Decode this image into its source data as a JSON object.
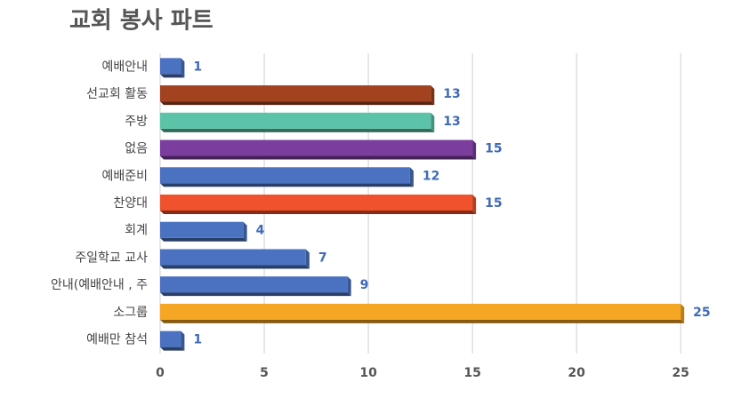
{
  "chart_data": {
    "type": "bar",
    "orientation": "horizontal",
    "title": "교회 봉사 파트",
    "categories": [
      "예배안내",
      "선교회 활동",
      "주방",
      "없음",
      "예배준비",
      "찬양대",
      "회계",
      "주일학교 교사",
      "안내(예배안내 , 주",
      "소그룹",
      "예배만 참석"
    ],
    "values": [
      1,
      13,
      13,
      15,
      12,
      15,
      4,
      7,
      9,
      25,
      1
    ],
    "colors": [
      "#4a72c0",
      "#a2421f",
      "#5bc4a8",
      "#7b3d9e",
      "#4a72c0",
      "#ef522c",
      "#4a72c0",
      "#4a72c0",
      "#4a72c0",
      "#f5a623",
      "#4a72c0"
    ],
    "value_label_color": "#3f6ab8",
    "xlim": [
      0,
      27
    ],
    "xticks": [
      0,
      5,
      10,
      15,
      20,
      25
    ],
    "grid": true
  }
}
